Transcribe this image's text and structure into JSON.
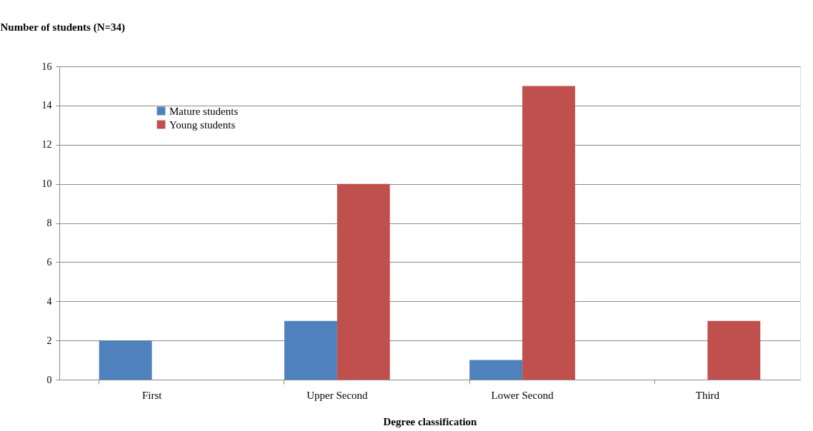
{
  "chart_data": {
    "type": "bar",
    "ylabel": "Number of students  (N=34)",
    "xlabel": "Degree classification",
    "categories": [
      "First",
      "Upper Second",
      "Lower Second",
      "Third"
    ],
    "series": [
      {
        "name": "Mature students",
        "color": "#4f81bd",
        "values": [
          2,
          3,
          1,
          0
        ]
      },
      {
        "name": "Young students",
        "color": "#c0504d",
        "values": [
          0,
          10,
          15,
          3
        ]
      }
    ],
    "ylim": [
      0,
      16
    ],
    "yticks": [
      0,
      2,
      4,
      6,
      8,
      10,
      12,
      14,
      16
    ],
    "grid": "y",
    "legend": "top left"
  }
}
